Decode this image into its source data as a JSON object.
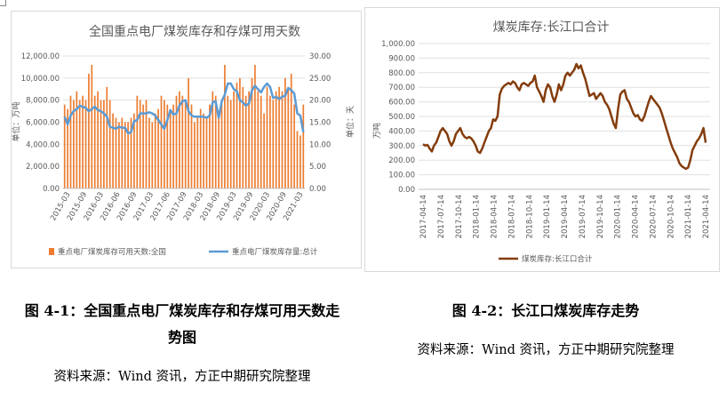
{
  "chart_data": [
    {
      "type": "bar+line",
      "title": "全国重点电厂煤炭库存和存煤可用天数",
      "ylabel_left": "单位：万吨",
      "ylabel_right": "单位：天",
      "ylim_left": [
        0,
        12000
      ],
      "ylim_right": [
        0,
        30
      ],
      "yticks_left": [
        "0.00",
        "2,000.00",
        "4,000.00",
        "6,000.00",
        "8,000.00",
        "10,000.00",
        "12,000.00"
      ],
      "yticks_right": [
        "0.00",
        "5.00",
        "10.00",
        "15.00",
        "20.00",
        "25.00",
        "30.00"
      ],
      "xticks": [
        "2015-03",
        "2015-09",
        "2016-03",
        "2016-06",
        "2016-09",
        "2017-03",
        "2017-06",
        "2017-09",
        "2018-03",
        "2018-09",
        "2019-03",
        "2019-09",
        "2020-03",
        "2020-09",
        "2021-03"
      ],
      "series": [
        {
          "name": "重点电厂煤炭库存可用天数:全国",
          "type": "bar",
          "axis": "right",
          "color": "#ed7d31",
          "values": [
            19,
            18,
            21,
            20,
            22,
            20,
            21,
            20,
            26,
            28,
            21,
            22,
            20,
            20,
            23,
            20,
            17,
            16,
            15,
            16,
            15,
            15,
            16,
            17,
            21,
            20,
            19,
            20,
            16,
            15,
            17,
            18,
            21,
            20,
            19,
            18,
            19,
            21,
            22,
            21,
            20,
            25,
            19,
            15,
            16,
            18,
            17,
            16,
            19,
            22,
            21,
            17,
            19,
            28,
            21,
            20,
            22,
            24,
            25,
            23,
            21,
            22,
            25,
            28,
            22,
            21,
            17,
            23,
            21,
            20,
            22,
            23,
            22,
            25,
            23,
            26,
            19,
            13,
            12,
            19
          ]
        },
        {
          "name": "重点电厂煤炭库存量:总计",
          "type": "line",
          "axis": "left",
          "color": "#5b9bd5",
          "values": [
            6500,
            5800,
            6600,
            7000,
            7200,
            7500,
            7400,
            7300,
            7000,
            7200,
            7400,
            7100,
            7000,
            6800,
            6500,
            5600,
            5500,
            5400,
            5600,
            5500,
            5500,
            5000,
            5100,
            6100,
            6200,
            6800,
            6800,
            6800,
            6900,
            6800,
            6600,
            6200,
            5800,
            5400,
            6200,
            7100,
            6700,
            6800,
            7500,
            7900,
            8000,
            7000,
            6600,
            6500,
            6500,
            6500,
            6500,
            6400,
            6600,
            7800,
            7900,
            6400,
            7900,
            8500,
            9500,
            9500,
            9000,
            8800,
            8000,
            7800,
            7500,
            7700,
            8900,
            9300,
            9000,
            8700,
            9200,
            9500,
            9200,
            8200,
            8300,
            8100,
            8300,
            8400,
            9100,
            8900,
            8600,
            6800,
            6600,
            5100
          ]
        }
      ],
      "legend_position": "bottom"
    },
    {
      "type": "line",
      "title": "煤炭库存:长江口合计",
      "ylabel": "万吨",
      "ylim": [
        0,
        1000
      ],
      "yticks": [
        "0.00",
        "100.00",
        "200.00",
        "300.00",
        "400.00",
        "500.00",
        "600.00",
        "700.00",
        "800.00",
        "900.00",
        "1,000.00"
      ],
      "xticks": [
        "2017-04-14",
        "2017-07-14",
        "2017-10-14",
        "2018-01-14",
        "2018-04-14",
        "2018-07-14",
        "2018-10-14",
        "2019-01-14",
        "2019-04-14",
        "2019-07-14",
        "2019-10-14",
        "2020-01-14",
        "2020-04-14",
        "2020-07-14",
        "2020-10-14",
        "2021-01-14",
        "2021-04-14"
      ],
      "series": [
        {
          "name": "煤炭库存:长江口合计",
          "color": "#843c0c",
          "values": [
            310,
            300,
            305,
            280,
            260,
            300,
            320,
            360,
            400,
            420,
            400,
            380,
            330,
            300,
            330,
            380,
            400,
            420,
            380,
            360,
            350,
            360,
            350,
            330,
            300,
            260,
            250,
            280,
            320,
            360,
            400,
            420,
            480,
            470,
            500,
            650,
            690,
            710,
            720,
            730,
            720,
            740,
            730,
            700,
            680,
            720,
            730,
            720,
            710,
            730,
            740,
            780,
            700,
            670,
            640,
            600,
            680,
            720,
            700,
            640,
            600,
            650,
            720,
            680,
            720,
            780,
            800,
            780,
            800,
            820,
            860,
            830,
            850,
            800,
            760,
            700,
            640,
            650,
            660,
            620,
            640,
            660,
            640,
            600,
            580,
            550,
            500,
            450,
            420,
            550,
            650,
            670,
            680,
            620,
            600,
            560,
            520,
            500,
            510,
            480,
            470,
            500,
            550,
            600,
            640,
            620,
            600,
            580,
            560,
            520,
            470,
            420,
            370,
            320,
            280,
            250,
            220,
            180,
            160,
            150,
            140,
            150,
            200,
            270,
            300,
            330,
            350,
            380,
            420,
            320
          ]
        }
      ],
      "legend_position": "bottom"
    }
  ],
  "captions": {
    "fig1_line1": "图 4-1：全国重点电厂煤炭库存和存煤可用天数走",
    "fig1_line2": "势图",
    "fig2": "图 4-2：长江口煤炭库存走势",
    "source1": "资料来源：Wind 资讯，方正中期研究院整理",
    "source2": "资料来源：Wind 资讯，方正中期研究院整理"
  }
}
